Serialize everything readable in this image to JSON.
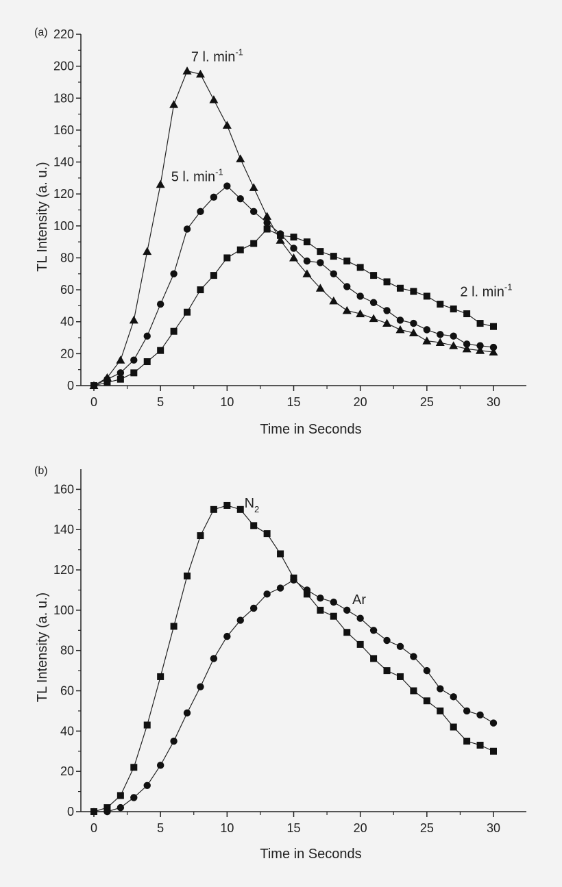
{
  "chart_data": [
    {
      "type": "line",
      "panel_label": "(a)",
      "xlabel": "Time in Seconds",
      "ylabel": "TL Intensity (a. u.)",
      "xlim": [
        0,
        30
      ],
      "ylim": [
        0,
        220
      ],
      "x_ticks": [
        0,
        5,
        10,
        15,
        20,
        25,
        30
      ],
      "y_ticks": [
        0,
        20,
        40,
        60,
        80,
        100,
        120,
        140,
        160,
        180,
        200,
        220
      ],
      "grid": false,
      "x": [
        0,
        1,
        2,
        3,
        4,
        5,
        6,
        7,
        8,
        9,
        10,
        11,
        12,
        13,
        14,
        15,
        16,
        17,
        18,
        19,
        20,
        21,
        22,
        23,
        24,
        25,
        26,
        27,
        28,
        29,
        30
      ],
      "series": [
        {
          "marker": "triangle",
          "values": [
            0,
            5,
            16,
            41,
            84,
            126,
            176,
            197,
            195,
            179,
            163,
            142,
            124,
            106,
            91,
            80,
            70,
            61,
            53,
            47,
            45,
            42,
            39,
            35,
            33,
            28,
            27,
            25,
            23,
            22,
            21
          ]
        },
        {
          "marker": "circle",
          "values": [
            0,
            4,
            8,
            16,
            31,
            51,
            70,
            98,
            109,
            118,
            125,
            117,
            109,
            102,
            95,
            86,
            78,
            77,
            70,
            62,
            56,
            52,
            47,
            41,
            39,
            35,
            32,
            31,
            26,
            25,
            24
          ]
        },
        {
          "marker": "square",
          "values": [
            0,
            2,
            4,
            8,
            15,
            22,
            34,
            46,
            60,
            69,
            80,
            85,
            89,
            98,
            94,
            93,
            90,
            84,
            81,
            78,
            74,
            69,
            65,
            61,
            59,
            56,
            51,
            48,
            45,
            39,
            37
          ]
        }
      ],
      "annotations": [
        {
          "text": "7 l. min",
          "sup": "-1",
          "x": 7.3,
          "y": 203
        },
        {
          "text": "5 l. min",
          "sup": "-1",
          "x": 5.8,
          "y": 128
        },
        {
          "text": "2 l. min",
          "sup": "-1",
          "x": 27.5,
          "y": 56
        }
      ]
    },
    {
      "type": "line",
      "panel_label": "(b)",
      "xlabel": "Time in Seconds",
      "ylabel": "TL Intensity (a. u.)",
      "xlim": [
        0,
        30
      ],
      "ylim": [
        0,
        170
      ],
      "x_ticks": [
        0,
        5,
        10,
        15,
        20,
        25,
        30
      ],
      "y_ticks": [
        0,
        20,
        40,
        60,
        80,
        100,
        120,
        140,
        160
      ],
      "grid": false,
      "x": [
        0,
        1,
        2,
        3,
        4,
        5,
        6,
        7,
        8,
        9,
        10,
        11,
        12,
        13,
        14,
        15,
        16,
        17,
        18,
        19,
        20,
        21,
        22,
        23,
        24,
        25,
        26,
        27,
        28,
        29,
        30
      ],
      "series": [
        {
          "marker": "square",
          "values": [
            0,
            2,
            8,
            22,
            43,
            67,
            92,
            117,
            137,
            150,
            152,
            150,
            142,
            138,
            128,
            116,
            108,
            100,
            97,
            89,
            83,
            76,
            70,
            67,
            60,
            55,
            50,
            42,
            35,
            33,
            30
          ]
        },
        {
          "marker": "circle",
          "values": [
            0,
            0,
            2,
            7,
            13,
            23,
            35,
            49,
            62,
            76,
            87,
            95,
            101,
            108,
            111,
            115,
            110,
            106,
            104,
            100,
            96,
            90,
            85,
            82,
            77,
            70,
            61,
            57,
            50,
            48,
            44
          ]
        }
      ],
      "annotations": [
        {
          "text": "N",
          "sub": "2",
          "x": 11.3,
          "y": 151
        },
        {
          "text": "Ar",
          "x": 19.4,
          "y": 103
        }
      ]
    }
  ]
}
